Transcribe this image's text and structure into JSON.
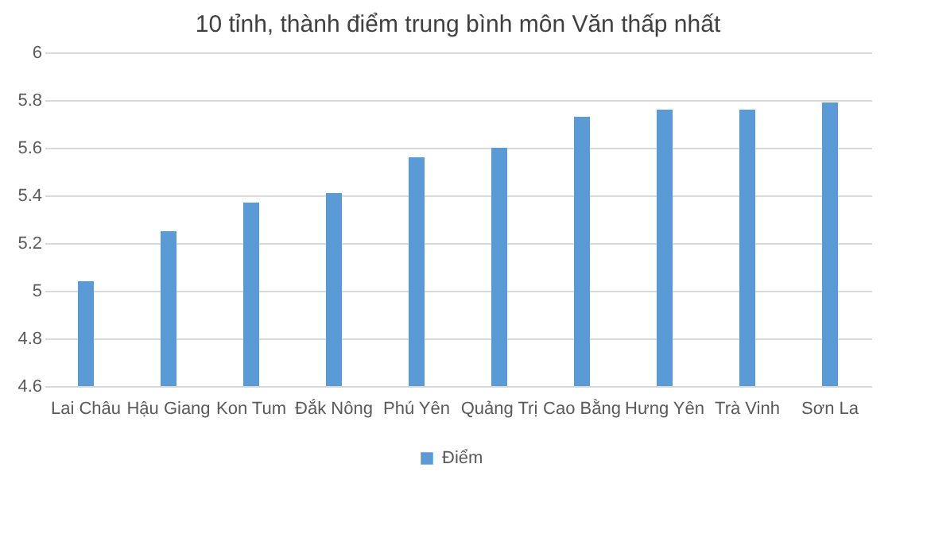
{
  "chart_data": {
    "type": "bar",
    "title": "10 tỉnh, thành điểm trung bình môn Văn thấp nhất",
    "categories": [
      "Lai Châu",
      "Hậu Giang",
      "Kon Tum",
      "Đắk Nông",
      "Phú Yên",
      "Quảng Trị",
      "Cao Bằng",
      "Hưng Yên",
      "Trà Vinh",
      "Sơn La"
    ],
    "series": [
      {
        "name": "Điểm",
        "color": "#5b9bd5",
        "values": [
          5.04,
          5.25,
          5.37,
          5.41,
          5.56,
          5.6,
          5.73,
          5.76,
          5.76,
          5.79
        ]
      }
    ],
    "ylim": [
      4.6,
      6
    ],
    "yticks": [
      4.6,
      4.8,
      5,
      5.2,
      5.4,
      5.6,
      5.8,
      6
    ],
    "grid": "y",
    "legend": "bottom"
  }
}
